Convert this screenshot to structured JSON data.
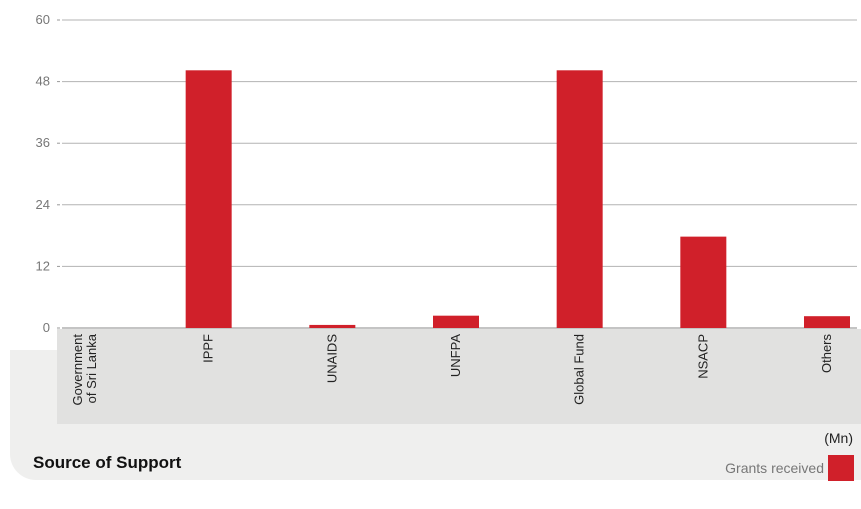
{
  "chart_data": {
    "type": "bar",
    "categories": [
      [
        "Government",
        "of Sri Lanka"
      ],
      [
        "IPPF"
      ],
      [
        "UNAIDS"
      ],
      [
        "UNFPA"
      ],
      [
        "Global Fund"
      ],
      [
        "NSACP"
      ],
      [
        "Others"
      ]
    ],
    "series": [
      {
        "name": "Grants received",
        "values": [
          0,
          50.2,
          0.6,
          2.4,
          50.2,
          17.8,
          2.3
        ]
      }
    ],
    "xlabel": "Source of Support",
    "ylabel": "",
    "units": "(Mn)",
    "ylim": [
      0,
      60
    ],
    "yticks": [
      0,
      12,
      24,
      36,
      48,
      60
    ],
    "grid": true,
    "legend_position": "bottom-right",
    "bar_color": "#d0202a",
    "grid_color": "#b3b3b3"
  }
}
